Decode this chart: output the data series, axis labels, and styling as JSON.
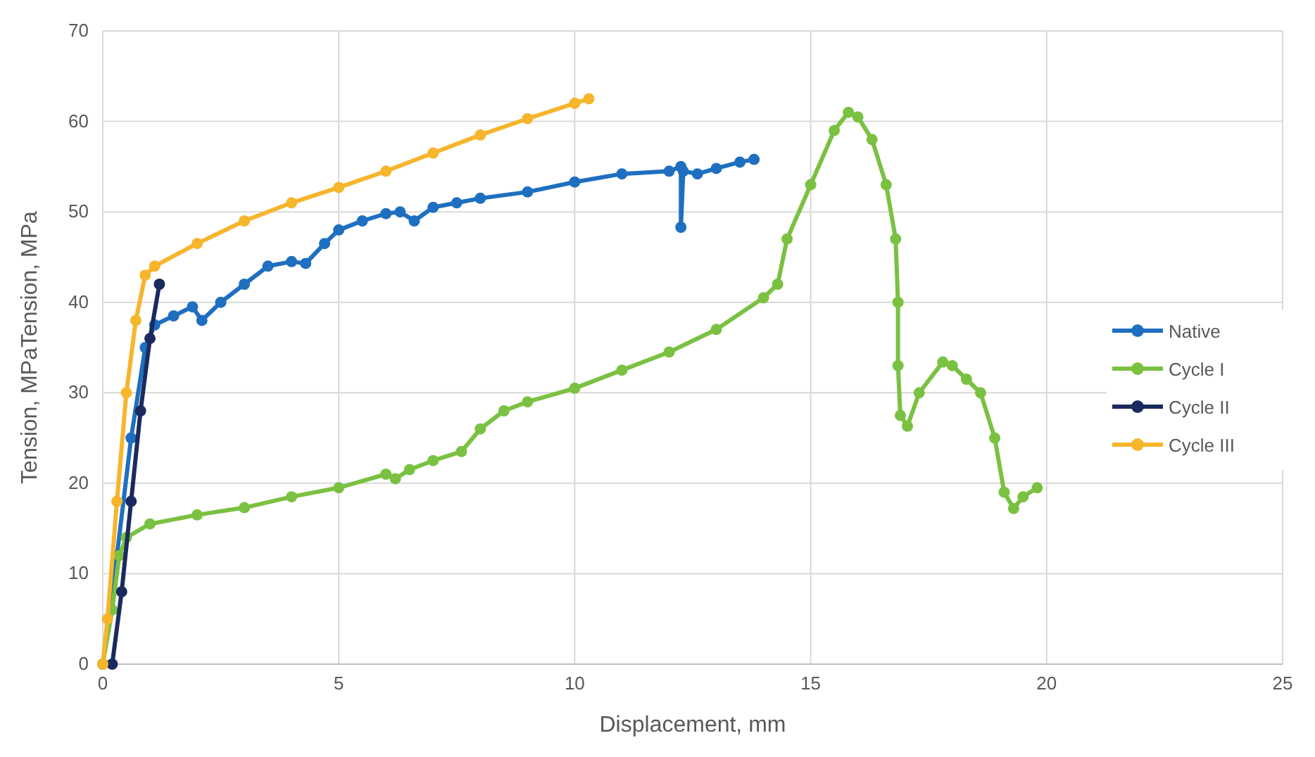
{
  "chart_data": {
    "type": "line",
    "xlabel": "Displacement, mm",
    "ylabel": "Tension, MPaTension, MPa",
    "xlim": [
      0,
      25
    ],
    "xticks": [
      0,
      5,
      10,
      15,
      20,
      25
    ],
    "ylim": [
      0,
      70
    ],
    "yticks": [
      0,
      10,
      20,
      30,
      40,
      50,
      60,
      70
    ],
    "grid": true,
    "legend": "right",
    "marker": "circle",
    "line_style": "solid",
    "series": [
      {
        "name": "Native",
        "color": "#1f6fc0",
        "x": [
          0,
          0.3,
          0.6,
          0.9,
          1.1,
          1.5,
          1.9,
          2.1,
          2.5,
          3,
          3.5,
          4,
          4.3,
          4.7,
          5,
          5.5,
          6,
          6.3,
          6.6,
          7,
          7.5,
          8,
          9,
          10,
          11,
          12,
          12.25,
          12.25,
          12.3,
          12.6,
          13,
          13.5,
          13.8
        ],
        "values": [
          0,
          12,
          25,
          35,
          37.5,
          38.5,
          39.5,
          38,
          40,
          42,
          44,
          44.5,
          44.3,
          46.5,
          48,
          49,
          49.8,
          50,
          49,
          50.5,
          51,
          51.5,
          52.2,
          53.3,
          54.2,
          54.5,
          55,
          48.3,
          54.5,
          54.2,
          54.8,
          55.5,
          55.8
        ]
      },
      {
        "name": "Cycle I",
        "color": "#7ac142",
        "x": [
          0,
          0.2,
          0.35,
          0.5,
          1,
          2,
          3,
          4,
          5,
          6,
          6.2,
          6.5,
          7,
          7.6,
          8,
          8.5,
          9,
          10,
          11,
          12,
          13,
          14,
          14.3,
          14.5,
          15,
          15.5,
          15.8,
          16,
          16.3,
          16.6,
          16.8,
          16.85,
          16.85,
          16.9,
          17.05,
          17.3,
          17.8,
          18,
          18.3,
          18.6,
          18.9,
          19.1,
          19.3,
          19.5,
          19.8
        ],
        "values": [
          0,
          6,
          12,
          14,
          15.5,
          16.5,
          17.3,
          18.5,
          19.5,
          21,
          20.5,
          21.5,
          22.5,
          23.5,
          26,
          28,
          29,
          30.5,
          32.5,
          34.5,
          37,
          40.5,
          42,
          47,
          53,
          59,
          61,
          60.5,
          58,
          53,
          47,
          40,
          33,
          27.5,
          26.3,
          30,
          33.4,
          33,
          31.5,
          30,
          25,
          19,
          17.2,
          18.5,
          19.5
        ]
      },
      {
        "name": "Cycle II",
        "color": "#1b2a5e",
        "x": [
          0.2,
          0.4,
          0.6,
          0.8,
          1,
          1.2
        ],
        "values": [
          0,
          8,
          18,
          28,
          36,
          42
        ]
      },
      {
        "name": "Cycle III",
        "color": "#f7b52c",
        "x": [
          0,
          0.1,
          0.3,
          0.5,
          0.7,
          0.9,
          1.1,
          2,
          3,
          4,
          5,
          6,
          7,
          8,
          9,
          10,
          10.3
        ],
        "values": [
          0,
          5,
          18,
          30,
          38,
          43,
          44,
          46.5,
          49,
          51,
          52.7,
          54.5,
          56.5,
          58.5,
          60.3,
          62,
          62.5
        ]
      }
    ]
  }
}
